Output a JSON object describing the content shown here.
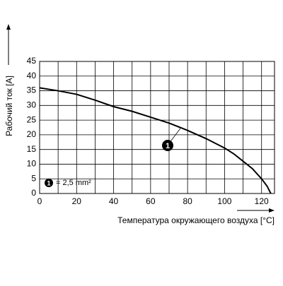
{
  "chart_data": {
    "type": "line",
    "x_label": "Температура окружающего воздуха [°C]",
    "y_label": "Рабочий ток [A]",
    "xlim": [
      0,
      127
    ],
    "ylim": [
      0,
      45
    ],
    "xticks": [
      0,
      20,
      40,
      60,
      80,
      100,
      120
    ],
    "minor_xticks": [
      10,
      30,
      50,
      70,
      90,
      110
    ],
    "yticks": [
      0,
      5,
      10,
      15,
      20,
      25,
      30,
      35,
      40,
      45
    ],
    "grid": true,
    "series": [
      {
        "name": "1",
        "color": "#000000",
        "x": [
          0,
          10,
          20,
          30,
          40,
          50,
          60,
          70,
          80,
          90,
          100,
          105,
          110,
          115,
          120,
          123,
          125
        ],
        "values": [
          36,
          35,
          33.8,
          31.8,
          29.6,
          28,
          26,
          24,
          21.5,
          18.7,
          15.5,
          13.5,
          11,
          8.5,
          5,
          2.5,
          0
        ]
      }
    ],
    "legend_text": "= 2,5 mm²"
  }
}
